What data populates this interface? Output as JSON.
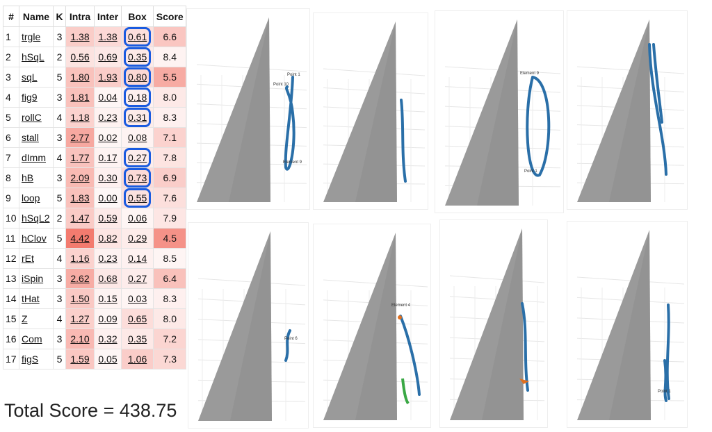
{
  "table": {
    "columns": [
      "#",
      "Name",
      "K",
      "Intra",
      "Inter",
      "Box",
      "Score"
    ],
    "rows": [
      [
        "1",
        "trgle",
        "3",
        "1.38",
        "1.38",
        "0.61",
        "6.6"
      ],
      [
        "2",
        "hSqL",
        "2",
        "0.56",
        "0.69",
        "0.35",
        "8.4"
      ],
      [
        "3",
        "sqL",
        "5",
        "1.80",
        "1.93",
        "0.80",
        "5.5"
      ],
      [
        "4",
        "fig9",
        "3",
        "1.81",
        "0.04",
        "0.18",
        "8.0"
      ],
      [
        "5",
        "rollC",
        "4",
        "1.18",
        "0.23",
        "0.31",
        "8.3"
      ],
      [
        "6",
        "stall",
        "3",
        "2.77",
        "0.02",
        "0.08",
        "7.1"
      ],
      [
        "7",
        "dImm",
        "4",
        "1.77",
        "0.17",
        "0.27",
        "7.8"
      ],
      [
        "8",
        "hB",
        "3",
        "2.09",
        "0.30",
        "0.73",
        "6.9"
      ],
      [
        "9",
        "loop",
        "5",
        "1.83",
        "0.00",
        "0.55",
        "7.6"
      ],
      [
        "10",
        "hSqL2",
        "2",
        "1.47",
        "0.59",
        "0.06",
        "7.9"
      ],
      [
        "11",
        "hClov",
        "5",
        "4.42",
        "0.82",
        "0.29",
        "4.5"
      ],
      [
        "12",
        "rEt",
        "4",
        "1.16",
        "0.23",
        "0.14",
        "8.5"
      ],
      [
        "13",
        "iSpin",
        "3",
        "2.62",
        "0.68",
        "0.27",
        "6.4"
      ],
      [
        "14",
        "tHat",
        "3",
        "1.50",
        "0.15",
        "0.03",
        "8.3"
      ],
      [
        "15",
        "Z",
        "4",
        "1.27",
        "0.09",
        "0.65",
        "8.0"
      ],
      [
        "16",
        "Com",
        "3",
        "2.10",
        "0.32",
        "0.35",
        "7.2"
      ],
      [
        "17",
        "figS",
        "5",
        "1.59",
        "0.05",
        "1.06",
        "7.3"
      ]
    ],
    "box_highlighted": [
      true,
      true,
      true,
      true,
      true,
      false,
      true,
      true,
      true,
      false,
      false,
      false,
      false,
      false,
      false,
      false,
      false
    ]
  },
  "total": "Total Score = 438.75",
  "panels": [
    {
      "labels": [
        "Point 1",
        "Point 10",
        "Element 9"
      ]
    },
    {
      "labels": []
    },
    {
      "labels": [
        "Element 9",
        "Point 1"
      ]
    },
    {
      "labels": []
    },
    {
      "labels": [
        "Point 6"
      ]
    },
    {
      "labels": [
        "Element 4"
      ]
    },
    {
      "labels": []
    },
    {
      "labels": [
        "Point 1"
      ]
    }
  ]
}
